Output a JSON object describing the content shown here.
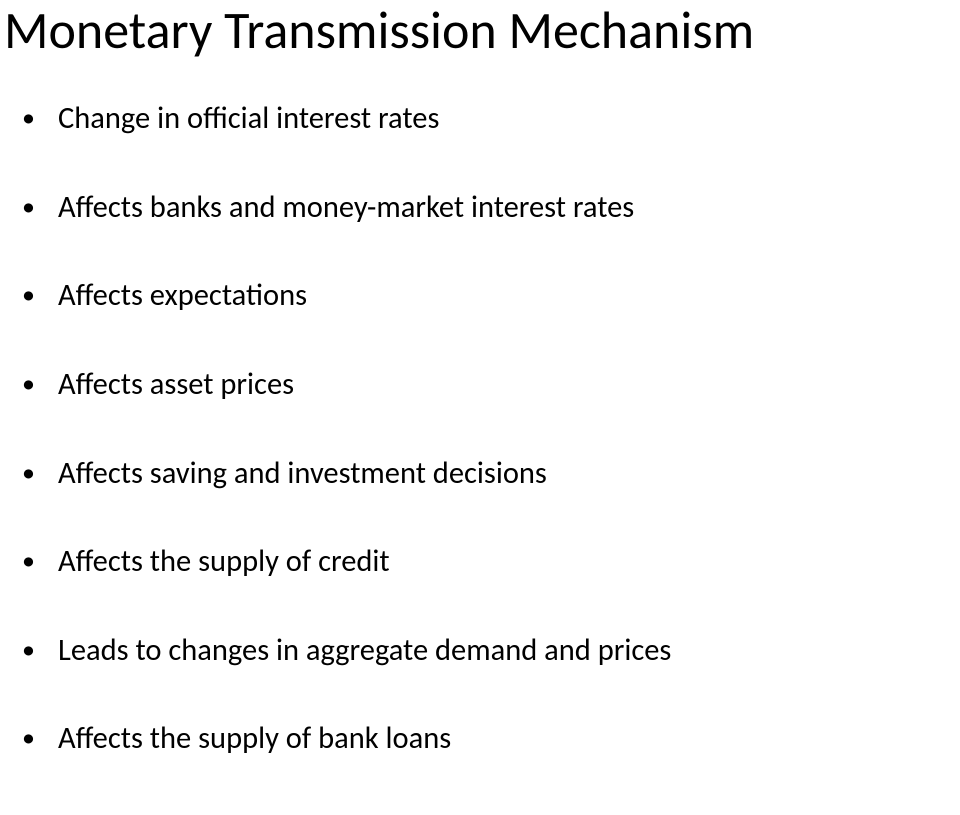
{
  "slide": {
    "title": "Monetary Transmission Mechanism",
    "bullets": [
      "Change in official interest rates",
      "Affects banks and money-market interest rates",
      "Affects expectations",
      "Affects asset prices",
      "Affects saving and investment decisions",
      "Affects the supply of credit",
      "Leads to changes in aggregate demand and prices",
      "Affects the supply of bank loans"
    ],
    "title_fontsize": 52,
    "bullet_fontsize": 30.5,
    "text_color": "#000000",
    "background_color": "#ffffff",
    "font_family": "Calibri"
  }
}
